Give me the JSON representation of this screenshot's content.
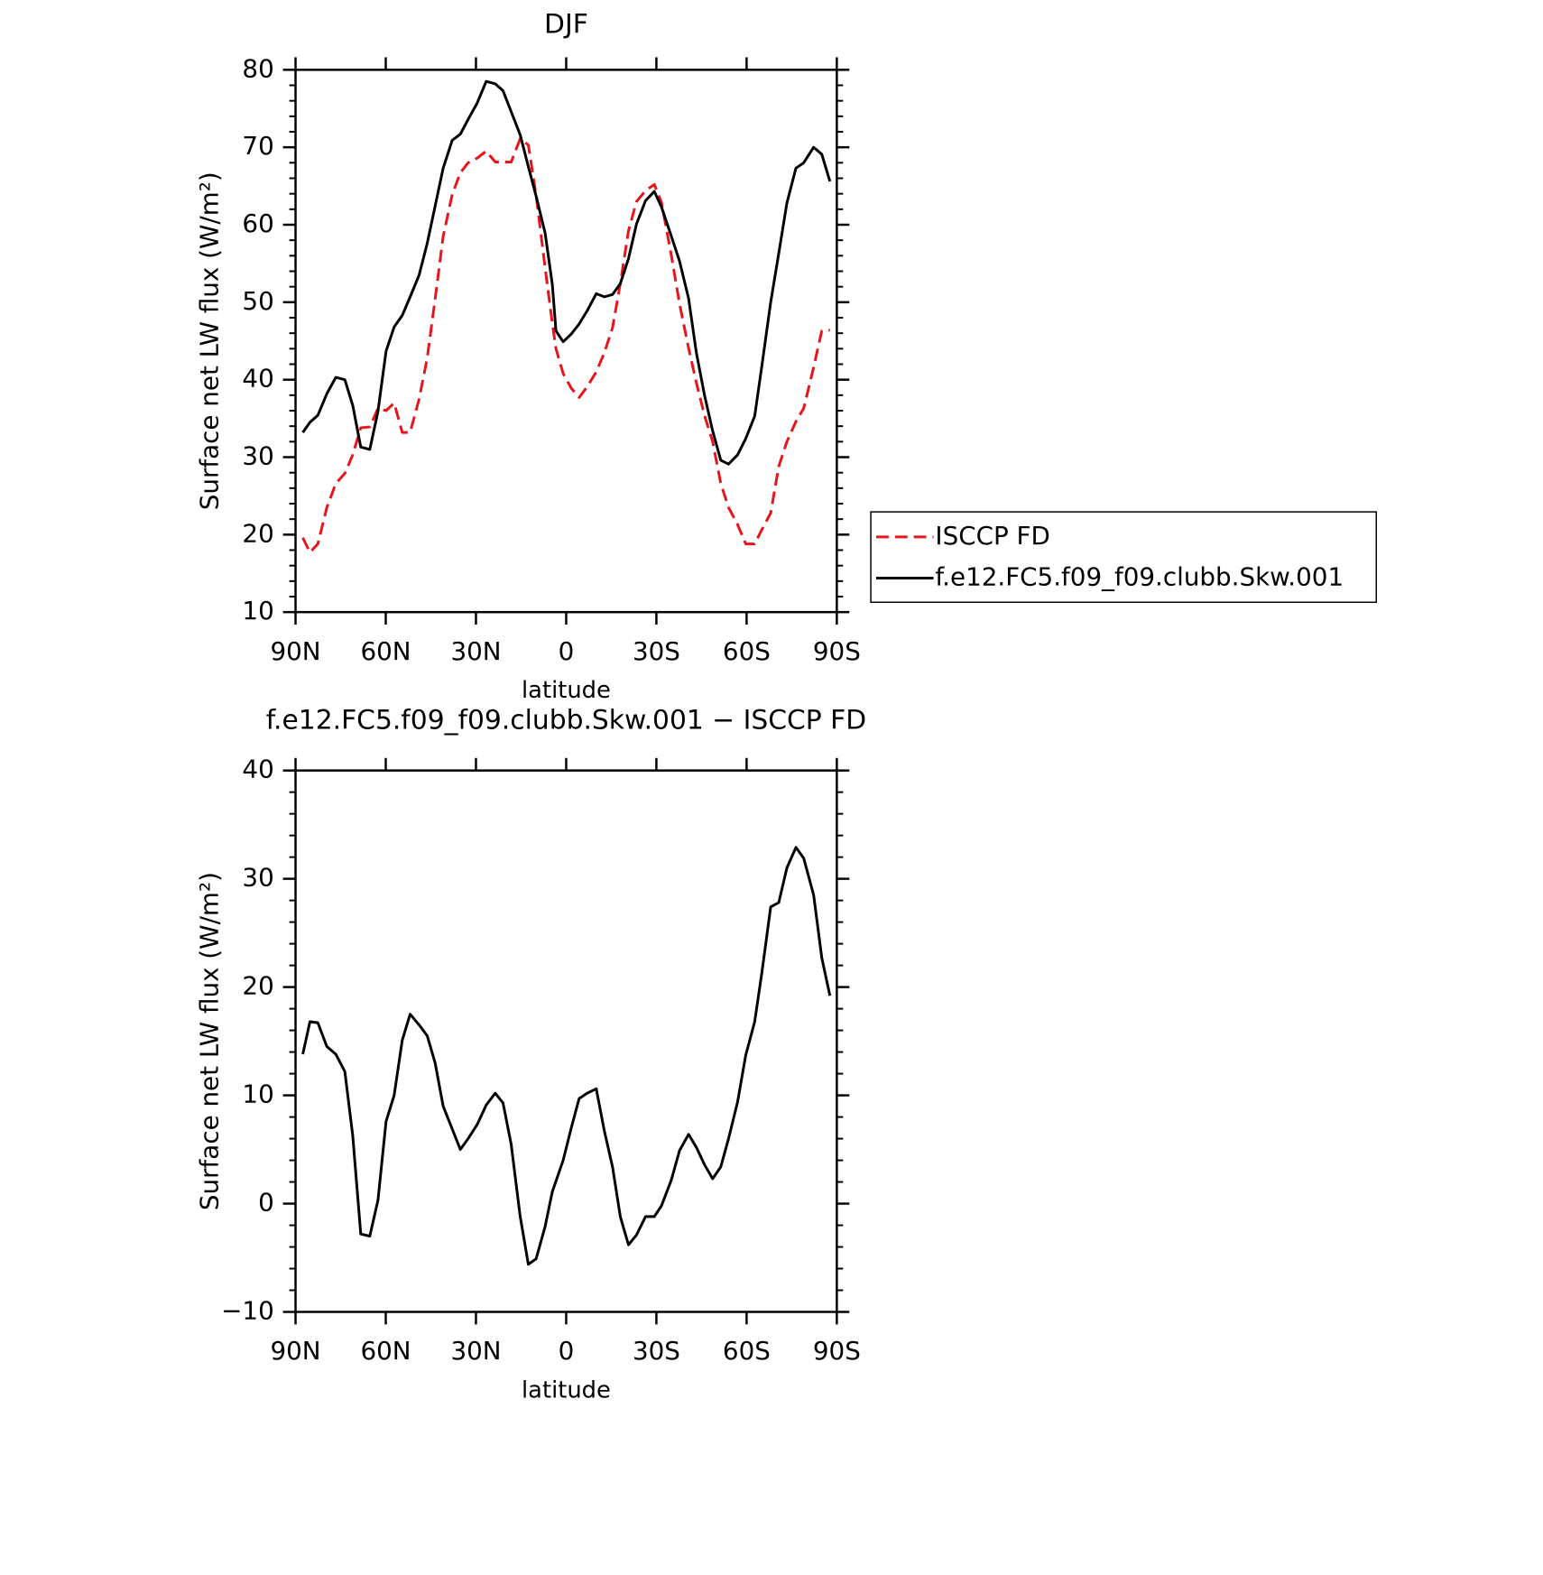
{
  "chart_data": [
    {
      "type": "line",
      "title": "DJF",
      "xlabel": "latitude",
      "ylabel": "Surface net LW flux (W/m²)",
      "x": [
        87.6,
        85.2,
        82.6,
        79.6,
        76.6,
        73.6,
        71,
        68.3,
        65.3,
        62.6,
        59.9,
        57.2,
        54.5,
        51.9,
        48.9,
        46.2,
        43.6,
        40.9,
        37.9,
        35.2,
        32.6,
        29.6,
        26.6,
        23.6,
        21,
        18.3,
        15.3,
        12.6,
        10,
        7,
        4.6,
        3.4,
        1,
        -1.7,
        -4.3,
        -7,
        -10,
        -12.7,
        -15.4,
        -18,
        -20.7,
        -23.4,
        -26.4,
        -29.3,
        -31.7,
        -35,
        -37.7,
        -40.7,
        -43.3,
        -46,
        -48.7,
        -51.4,
        -54,
        -57,
        -59.7,
        -62.7,
        -65,
        -68,
        -70.7,
        -73.4,
        -76.4,
        -79,
        -82.3,
        -85,
        -87.7
      ],
      "series": [
        {
          "name": "ISCCP FD",
          "color": "#e8141c",
          "dashed": true,
          "values": [
            19.6,
            17.7,
            18.8,
            23.5,
            26.6,
            27.9,
            30.3,
            33.8,
            33.9,
            36.3,
            36.0,
            37.0,
            33.2,
            33.2,
            37.5,
            42.8,
            50.4,
            58.5,
            63.9,
            66.7,
            68.0,
            68.6,
            69.5,
            68.1,
            68.1,
            68.1,
            71.1,
            70.3,
            63.8,
            54.4,
            47.3,
            44.0,
            40.8,
            38.9,
            37.7,
            39.1,
            41.0,
            43.5,
            46.7,
            52.4,
            59.2,
            63.0,
            64.4,
            65.2,
            62.9,
            56.0,
            49.8,
            44.1,
            39.6,
            35.4,
            32.0,
            26.6,
            23.5,
            21.3,
            18.8,
            18.8,
            20.6,
            22.8,
            28.8,
            32.0,
            34.6,
            36.3,
            41.6,
            46.3,
            46.4
          ]
        },
        {
          "name": "f.e12.FC5.f09_f09.clubb.Skw.001",
          "color": "#000000",
          "dashed": false,
          "values": [
            33.2,
            34.5,
            35.4,
            38.2,
            40.3,
            40.0,
            36.7,
            31.3,
            31.0,
            35.9,
            43.7,
            46.8,
            48.3,
            50.7,
            53.5,
            57.6,
            62.4,
            67.3,
            70.9,
            71.7,
            73.6,
            75.7,
            78.5,
            78.2,
            77.3,
            74.6,
            71.6,
            67.5,
            63.7,
            58.9,
            52.3,
            46.3,
            44.9,
            45.9,
            47.2,
            48.9,
            51.1,
            50.7,
            51.0,
            52.4,
            55.6,
            60.1,
            63.1,
            64.3,
            62.3,
            58.5,
            55.3,
            50.5,
            43.5,
            38.0,
            33.4,
            29.6,
            29.1,
            30.3,
            32.4,
            35.3,
            41.6,
            50.0,
            56.3,
            62.8,
            67.3,
            68.0,
            70.0,
            69.1,
            65.6
          ]
        }
      ],
      "xlim": [
        90,
        -90
      ],
      "xticks": [
        {
          "value": 90,
          "label": "90N"
        },
        {
          "value": 60,
          "label": "60N"
        },
        {
          "value": 30,
          "label": "30N"
        },
        0,
        {
          "value": -30,
          "label": "30S"
        },
        {
          "value": -60,
          "label": "60S"
        },
        {
          "value": -90,
          "label": "90S"
        }
      ],
      "ylim": [
        10,
        80
      ],
      "yticks": [
        10,
        20,
        30,
        40,
        50,
        60,
        70,
        80
      ],
      "legend": "right"
    },
    {
      "type": "line",
      "title": "f.e12.FC5.f09_f09.clubb.Skw.001 − ISCCP FD",
      "xlabel": "latitude",
      "ylabel": "Surface net LW flux (W/m²)",
      "x": [
        87.6,
        85.2,
        82.6,
        79.6,
        76.6,
        73.6,
        71,
        68.3,
        65.3,
        62.6,
        59.9,
        57.2,
        54.5,
        51.9,
        48.9,
        46.2,
        43.6,
        40.9,
        37.9,
        35.2,
        32.6,
        29.6,
        26.6,
        23.6,
        21,
        18.3,
        15.3,
        12.6,
        10,
        7,
        4.6,
        1,
        -1.7,
        -4.3,
        -7,
        -10,
        -12.7,
        -15.4,
        -18,
        -20.7,
        -23.4,
        -26.4,
        -29.3,
        -31.7,
        -35,
        -37.7,
        -40.7,
        -43.3,
        -46,
        -48.7,
        -51.4,
        -54,
        -57,
        -59.7,
        -62.7,
        -65,
        -68,
        -70.7,
        -73.4,
        -76.4,
        -79,
        -82.3,
        -85,
        -87.7
      ],
      "series": [
        {
          "color": "#000000",
          "dashed": false,
          "values": [
            13.8,
            16.8,
            16.7,
            14.5,
            13.8,
            12.2,
            6.3,
            -2.8,
            -3.0,
            0.3,
            7.6,
            10.0,
            15.1,
            17.5,
            16.5,
            15.5,
            13.0,
            9.0,
            6.9,
            5.0,
            6.0,
            7.3,
            9.1,
            10.2,
            9.3,
            5.5,
            -1.2,
            -5.6,
            -5.1,
            -2.1,
            1.1,
            4.0,
            7.0,
            9.7,
            10.2,
            10.6,
            6.7,
            3.4,
            -1.2,
            -3.8,
            -2.9,
            -1.2,
            -1.2,
            -0.2,
            2.2,
            4.9,
            6.4,
            5.2,
            3.6,
            2.3,
            3.4,
            6.0,
            9.4,
            13.7,
            16.8,
            21.2,
            27.4,
            27.8,
            31.0,
            32.9,
            31.9,
            28.5,
            22.7,
            19.2
          ]
        }
      ],
      "xlim": [
        90,
        -90
      ],
      "xticks": [
        {
          "value": 90,
          "label": "90N"
        },
        {
          "value": 60,
          "label": "60N"
        },
        {
          "value": 30,
          "label": "30N"
        },
        0,
        {
          "value": -30,
          "label": "30S"
        },
        {
          "value": -60,
          "label": "60S"
        },
        {
          "value": -90,
          "label": "90S"
        }
      ],
      "ylim": [
        -10,
        40
      ],
      "yticks": [
        {
          "value": -10,
          "label": "−10"
        },
        0,
        10,
        20,
        30,
        40
      ]
    }
  ]
}
